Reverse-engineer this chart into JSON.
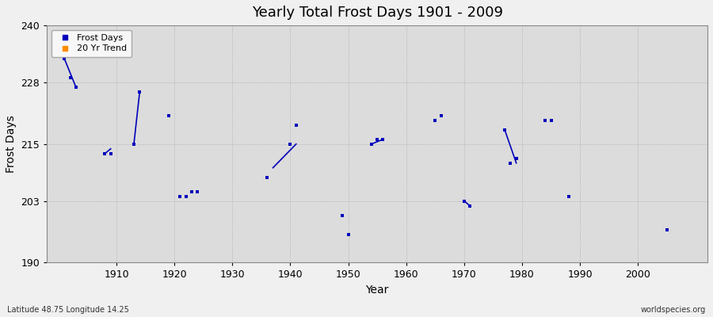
{
  "title": "Yearly Total Frost Days 1901 - 2009",
  "xlabel": "Year",
  "ylabel": "Frost Days",
  "subtitle": "Latitude 48.75 Longitude 14.25",
  "watermark": "worldspecies.org",
  "xlim": [
    1898,
    2012
  ],
  "ylim": [
    190,
    240
  ],
  "yticks": [
    190,
    203,
    215,
    228,
    240
  ],
  "xticks": [
    1910,
    1920,
    1930,
    1940,
    1950,
    1960,
    1970,
    1980,
    1990,
    2000
  ],
  "fig_bg_color": "#f0f0f0",
  "plot_bg_color": "#dcdcdc",
  "scatter_color": "#0000bb",
  "scatter_size": 8,
  "frost_days_points": [
    [
      1901,
      233
    ],
    [
      1902,
      229
    ],
    [
      1903,
      227
    ],
    [
      1908,
      213
    ],
    [
      1909,
      213
    ],
    [
      1913,
      215
    ],
    [
      1914,
      226
    ],
    [
      1919,
      221
    ],
    [
      1921,
      204
    ],
    [
      1922,
      204
    ],
    [
      1923,
      205
    ],
    [
      1924,
      205
    ],
    [
      1936,
      208
    ],
    [
      1940,
      215
    ],
    [
      1941,
      219
    ],
    [
      1949,
      200
    ],
    [
      1950,
      196
    ],
    [
      1954,
      215
    ],
    [
      1955,
      216
    ],
    [
      1956,
      216
    ],
    [
      1965,
      220
    ],
    [
      1966,
      221
    ],
    [
      1970,
      203
    ],
    [
      1971,
      202
    ],
    [
      1977,
      218
    ],
    [
      1978,
      211
    ],
    [
      1979,
      212
    ],
    [
      1984,
      220
    ],
    [
      1985,
      220
    ],
    [
      1988,
      204
    ],
    [
      2005,
      197
    ]
  ],
  "trend_segments": [
    [
      [
        1901,
        233
      ],
      [
        1903,
        227
      ]
    ],
    [
      [
        1908,
        213
      ],
      [
        1909,
        214
      ]
    ],
    [
      [
        1913,
        215
      ],
      [
        1914,
        226
      ]
    ],
    [
      [
        1937,
        210
      ],
      [
        1941,
        215
      ]
    ],
    [
      [
        1954,
        215
      ],
      [
        1956,
        216
      ]
    ],
    [
      [
        1970,
        203
      ],
      [
        1971,
        202
      ]
    ],
    [
      [
        1977,
        218
      ],
      [
        1979,
        211
      ]
    ]
  ],
  "legend_items": [
    {
      "label": "Frost Days",
      "color": "#0000bb"
    },
    {
      "label": "20 Yr Trend",
      "color": "#ff8c00"
    }
  ]
}
